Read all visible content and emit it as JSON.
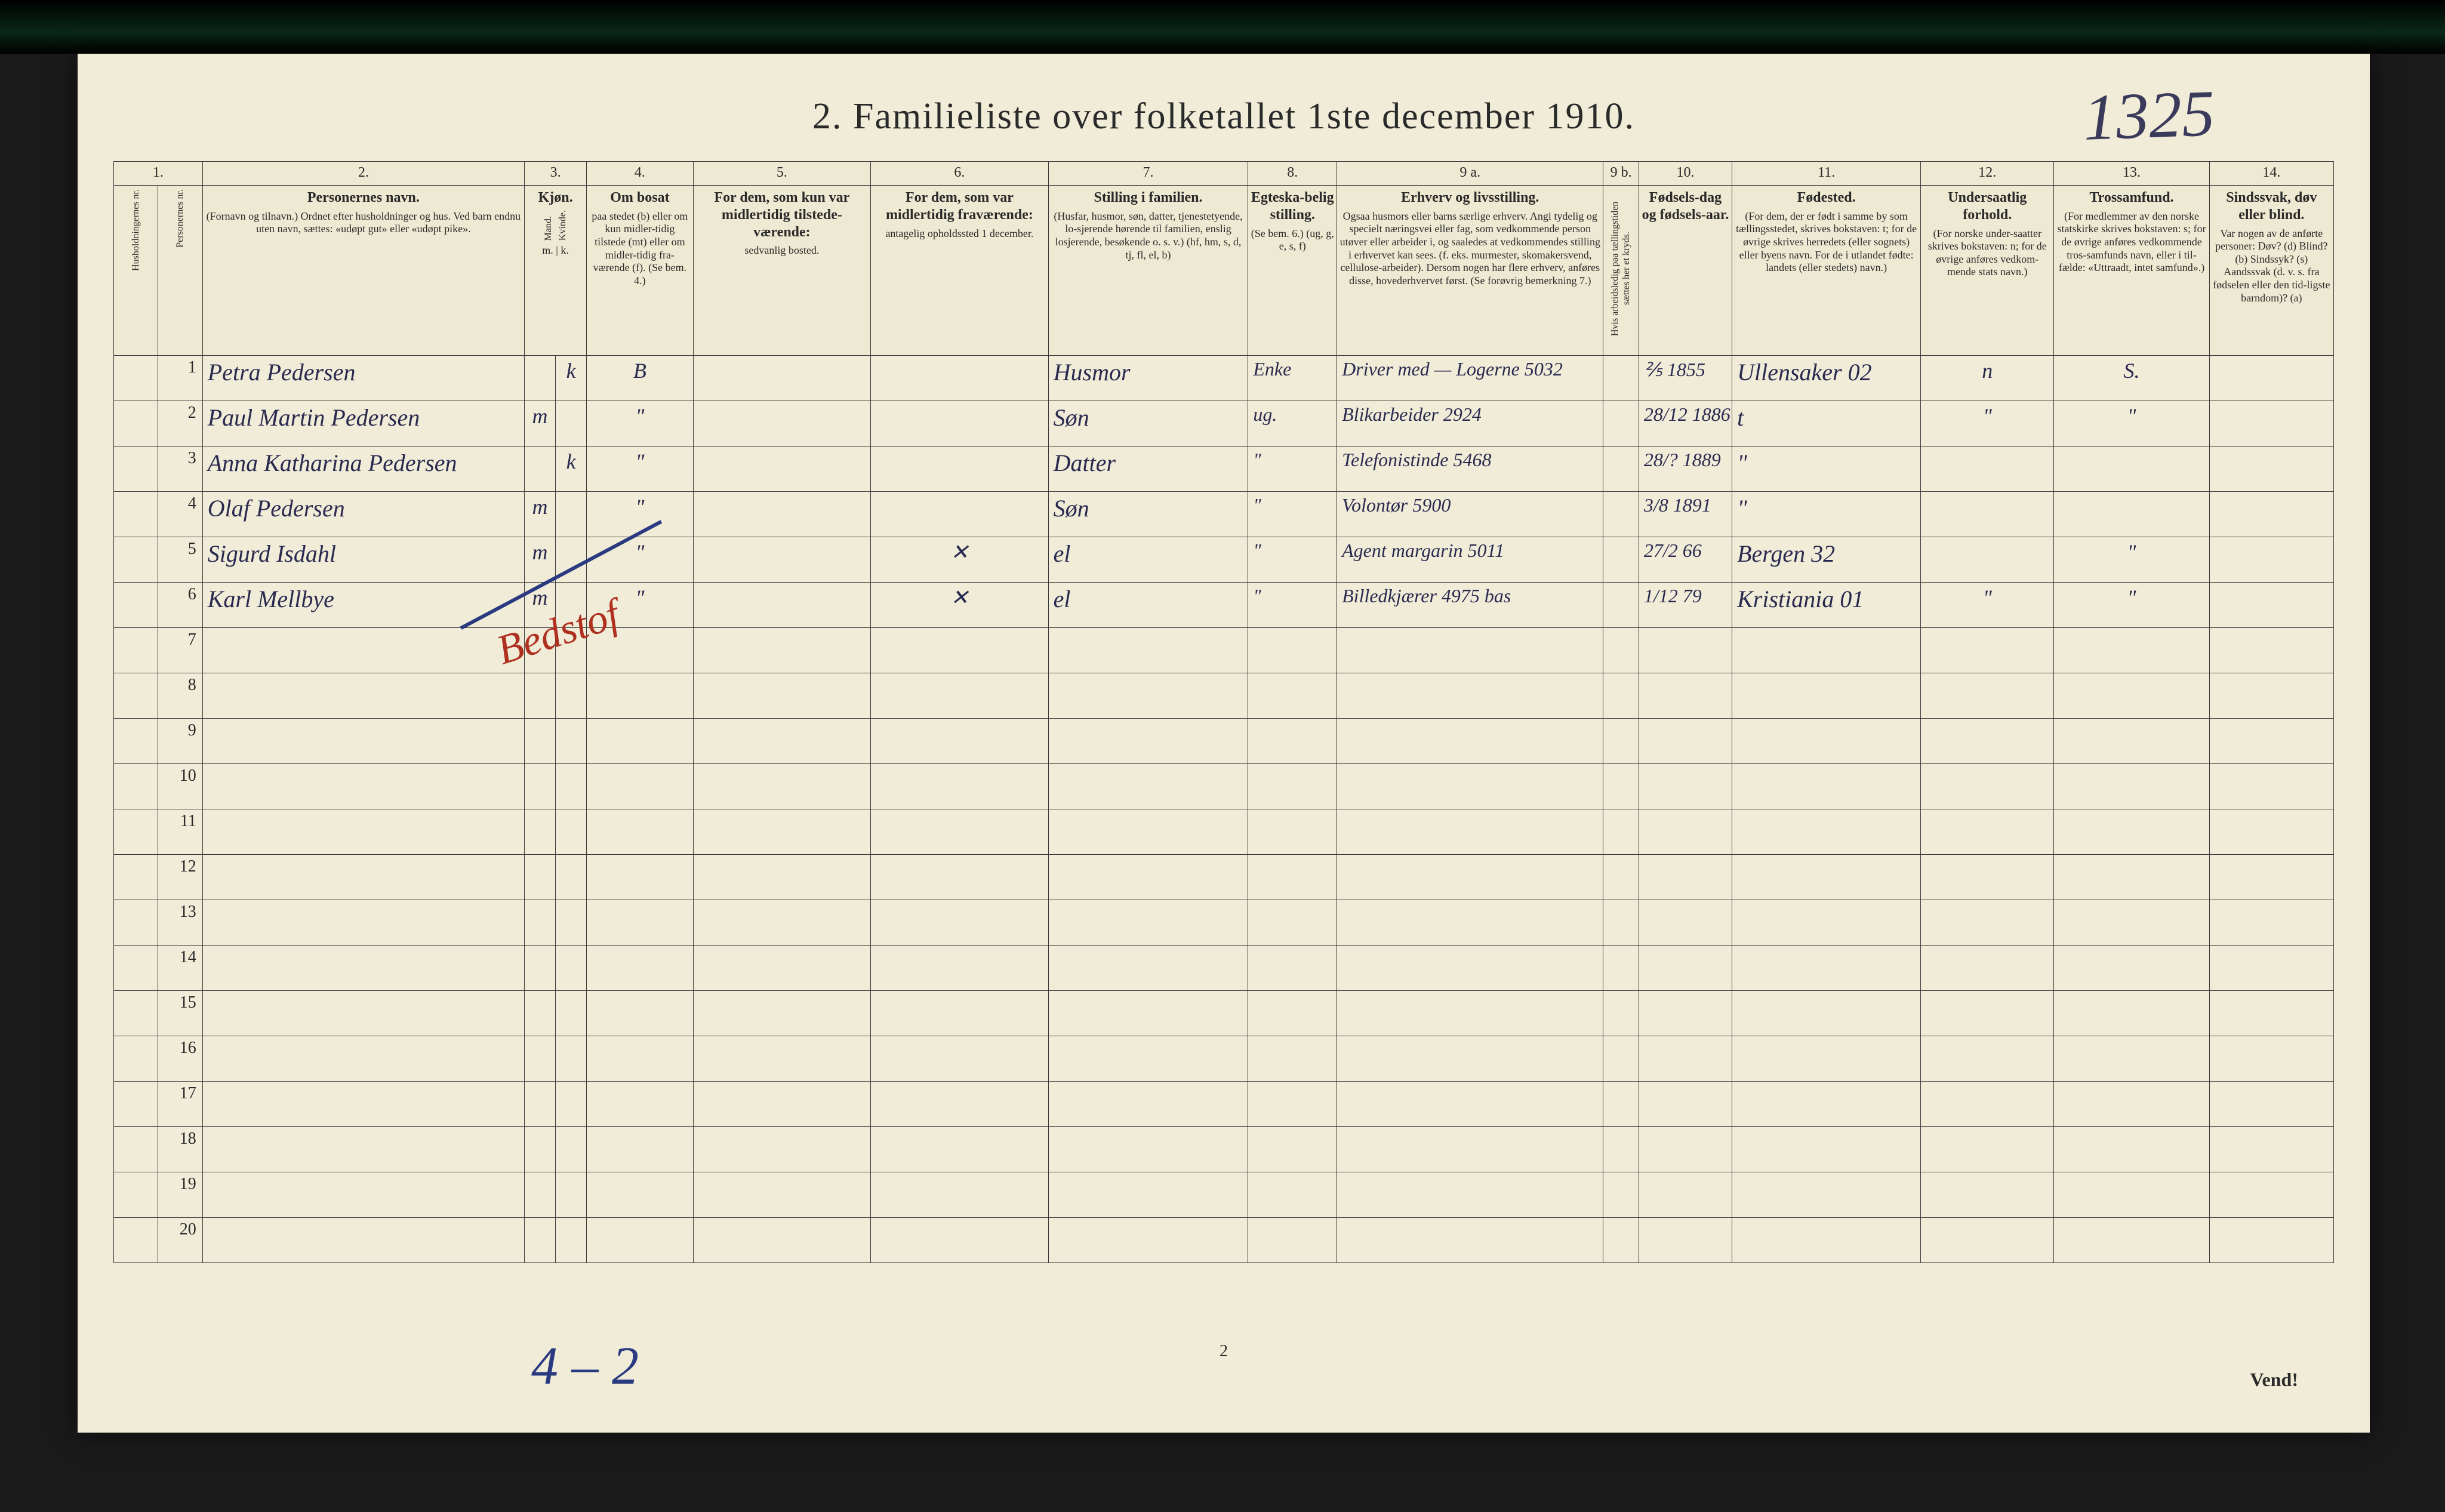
{
  "title": "2.  Familieliste over folketallet 1ste december 1910.",
  "handwritten_page_number": "1325",
  "bottom_page_number": "2",
  "vend_text": "Vend!",
  "bottom_annotation": "4 – 2",
  "red_annotation": "Bedstof",
  "colors": {
    "page_bg": "#f0ecd8",
    "ink_print": "#2a2a2a",
    "ink_hand_blue": "#2a2a50",
    "ink_red": "#b03020",
    "border": "#3a3a3a"
  },
  "column_numbers": [
    "1.",
    "",
    "2.",
    "3.",
    "",
    "4.",
    "5.",
    "6.",
    "7.",
    "8.",
    "9 a.",
    "9 b.",
    "10.",
    "11.",
    "12.",
    "13.",
    "14."
  ],
  "headers": {
    "c1a": "Husholdningernes nr.",
    "c1b": "Personernes nr.",
    "c2_title": "Personernes navn.",
    "c2_sub": "(Fornavn og tilnavn.)\nOrdnet efter husholdninger og hus.\nVed barn endnu uten navn, sættes: «udøpt gut» eller «udøpt pike».",
    "c3_title": "Kjøn.",
    "c3a": "Mand.",
    "c3b": "Kvinde.",
    "c3_sub": "m. | k.",
    "c4_title": "Om bosat",
    "c4_sub": "paa stedet (b) eller om kun midler-tidig tilstede (mt) eller om midler-tidig fra-værende (f). (Se bem. 4.)",
    "c5_title": "For dem, som kun var midlertidig tilstede-værende:",
    "c5_sub": "sedvanlig bosted.",
    "c6_title": "For dem, som var midlertidig fraværende:",
    "c6_sub": "antagelig opholdssted 1 december.",
    "c7_title": "Stilling i familien.",
    "c7_sub": "(Husfar, husmor, søn, datter, tjenestetyende, lo-sjerende hørende til familien, enslig losjerende, besøkende o. s. v.)\n(hf, hm, s, d, tj, fl, el, b)",
    "c8_title": "Egteska-belig stilling.",
    "c8_sub": "(Se bem. 6.)\n(ug, g, e, s, f)",
    "c9a_title": "Erhverv og livsstilling.",
    "c9a_sub": "Ogsaa husmors eller barns særlige erhverv. Angi tydelig og specielt næringsvei eller fag, som vedkommende person utøver eller arbeider i, og saaledes at vedkommendes stilling i erhvervet kan sees. (f. eks. murmester, skomakersvend, cellulose-arbeider). Dersom nogen har flere erhverv, anføres disse, hovederhvervet først.\n(Se forøvrig bemerkning 7.)",
    "c9b": "Hvis arbeidsledig paa tællingstiden sættes her et kryds.",
    "c10_title": "Fødsels-dag og fødsels-aar.",
    "c11_title": "Fødested.",
    "c11_sub": "(For dem, der er født i samme by som tællingsstedet, skrives bokstaven: t; for de øvrige skrives herredets (eller sognets) eller byens navn. For de i utlandet fødte: landets (eller stedets) navn.)",
    "c12_title": "Undersaatlig forhold.",
    "c12_sub": "(For norske under-saatter skrives bokstaven: n; for de øvrige anføres vedkom-mende stats navn.)",
    "c13_title": "Trossamfund.",
    "c13_sub": "(For medlemmer av den norske statskirke skrives bokstaven: s; for de øvrige anføres vedkommende tros-samfunds navn, eller i til-fælde: «Uttraadt, intet samfund».)",
    "c14_title": "Sindssvak, døv eller blind.",
    "c14_sub": "Var nogen av de anførte personer:\nDøv? (d)\nBlind? (b)\nSindssyk? (s)\nAandssvak (d. v. s. fra fødselen eller den tid-ligste barndom)? (a)"
  },
  "rows": [
    {
      "n": "1",
      "name": "Petra Pedersen",
      "sex_m": "",
      "sex_k": "k",
      "bosat": "B",
      "c5": "",
      "c6": "",
      "stilling": "Husmor",
      "egte": "Enke",
      "erhverv": "Driver med — Logerne 5032",
      "c9b": "",
      "fdato": "⅖ 1855",
      "fsted": "Ullensaker  02",
      "under": "n",
      "tro": "S.",
      "c14": ""
    },
    {
      "n": "2",
      "name": "Paul Martin Pedersen",
      "sex_m": "m",
      "sex_k": "",
      "bosat": "\"",
      "c5": "",
      "c6": "",
      "stilling": "Søn",
      "egte": "ug.",
      "erhverv": "Blikarbeider 2924",
      "c9b": "",
      "fdato": "28/12 1886",
      "fsted": "t",
      "under": "\"",
      "tro": "\"",
      "c14": ""
    },
    {
      "n": "3",
      "name": "Anna Katharina Pedersen",
      "sex_m": "",
      "sex_k": "k",
      "bosat": "\"",
      "c5": "",
      "c6": "",
      "stilling": "Datter",
      "egte": "\"",
      "erhverv": "Telefonistinde 5468",
      "c9b": "",
      "fdato": "28/? 1889",
      "fsted": "\"",
      "under": "",
      "tro": "",
      "c14": ""
    },
    {
      "n": "4",
      "name": "Olaf Pedersen",
      "sex_m": "m",
      "sex_k": "",
      "bosat": "\"",
      "c5": "",
      "c6": "",
      "stilling": "Søn",
      "egte": "\"",
      "erhverv": "Volontør 5900",
      "c9b": "",
      "fdato": "3/8 1891",
      "fsted": "\"",
      "under": "",
      "tro": "",
      "c14": ""
    },
    {
      "n": "5",
      "name": "Sigurd Isdahl",
      "sex_m": "m",
      "sex_k": "",
      "bosat": "\"",
      "c5": "",
      "c6": "✕",
      "stilling": "el",
      "egte": "\"",
      "erhverv": "Agent margarin 5011",
      "c9b": "",
      "fdato": "27/2 66",
      "fsted": "Bergen  32",
      "under": "",
      "tro": "\"",
      "c14": ""
    },
    {
      "n": "6",
      "name": "Karl Mellbye",
      "sex_m": "m",
      "sex_k": "",
      "bosat": "\"",
      "c5": "",
      "c6": "✕",
      "stilling": "el",
      "egte": "\"",
      "erhverv": "Billedkjærer 4975 bas",
      "c9b": "",
      "fdato": "1/12 79",
      "fsted": "Kristiania 01",
      "under": "\"",
      "tro": "\"",
      "c14": ""
    },
    {
      "n": "7"
    },
    {
      "n": "8"
    },
    {
      "n": "9"
    },
    {
      "n": "10"
    },
    {
      "n": "11"
    },
    {
      "n": "12"
    },
    {
      "n": "13"
    },
    {
      "n": "14"
    },
    {
      "n": "15"
    },
    {
      "n": "16"
    },
    {
      "n": "17"
    },
    {
      "n": "18"
    },
    {
      "n": "19"
    },
    {
      "n": "20"
    }
  ]
}
